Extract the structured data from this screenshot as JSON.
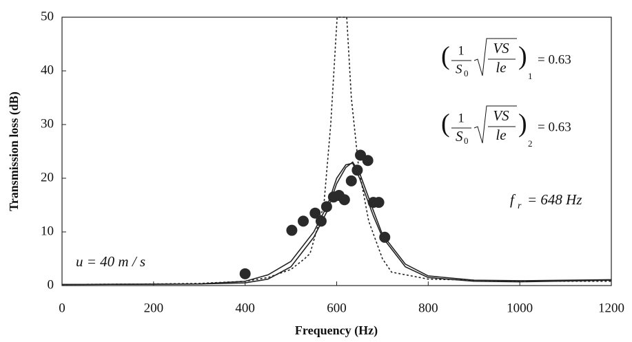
{
  "chart_data": {
    "type": "scatter-line",
    "xlabel": "Frequency (Hz)",
    "ylabel": "Transmission loss (dB)",
    "xlim": [
      0,
      1200
    ],
    "ylim": [
      0,
      50
    ],
    "xticks": [
      0,
      200,
      400,
      600,
      800,
      1000,
      1200
    ],
    "yticks": [
      0,
      10,
      20,
      30,
      40,
      50
    ],
    "annotations": {
      "speed": "u = 40 m / s",
      "resonance": "f",
      "resonance_sub": "r",
      "resonance_value": "= 648 Hz",
      "formula_numerator": "1",
      "formula_denominator": "S",
      "formula_denominator_sub": "0",
      "formula_root_top": "VS",
      "formula_root_bottom": "le",
      "formula_1_index": "1",
      "formula_1_value": "= 0.63",
      "formula_2_index": "2",
      "formula_2_value": "= 0.63"
    },
    "points": {
      "color": "#2a2a2a",
      "x": [
        400,
        502,
        527,
        553,
        566,
        578,
        593,
        605,
        617,
        632,
        645,
        652,
        668,
        680,
        692,
        705
      ],
      "y": [
        2.2,
        10.3,
        12,
        13.5,
        12,
        14.7,
        16.5,
        16.8,
        16,
        19.5,
        21.5,
        24.3,
        23.3,
        15.5,
        15.5,
        9
      ]
    },
    "series": [
      {
        "color": "#222",
        "dash": true,
        "x": [
          0,
          200,
          300,
          400,
          450,
          500,
          530,
          542,
          572,
          587,
          601,
          622,
          632,
          648,
          670,
          700,
          720,
          800,
          1000,
          1200
        ],
        "values": [
          0.2,
          0.3,
          0.4,
          0.8,
          1.5,
          3,
          5,
          6,
          15,
          30,
          50,
          50,
          35,
          22,
          12,
          5,
          2.5,
          1.2,
          0.8,
          0.8
        ]
      },
      {
        "color": "#222",
        "dash": false,
        "x": [
          0,
          300,
          400,
          450,
          500,
          550,
          580,
          600,
          620,
          635,
          650,
          680,
          700,
          750,
          800,
          900,
          1000,
          1200
        ],
        "values": [
          0.2,
          0.3,
          0.8,
          2,
          4.5,
          10,
          15,
          20,
          22.5,
          22.8,
          20,
          13,
          9,
          3.5,
          1.5,
          0.8,
          0.7,
          1
        ]
      },
      {
        "color": "#222",
        "dash": false,
        "x": [
          0,
          300,
          400,
          450,
          500,
          550,
          580,
          600,
          620,
          635,
          650,
          680,
          700,
          750,
          800,
          900,
          1000,
          1200
        ],
        "values": [
          0.2,
          0.3,
          0.5,
          1.2,
          3.5,
          9,
          14,
          19,
          22,
          23,
          21,
          14,
          9.5,
          4,
          1.8,
          1,
          0.9,
          1.1
        ]
      }
    ]
  }
}
